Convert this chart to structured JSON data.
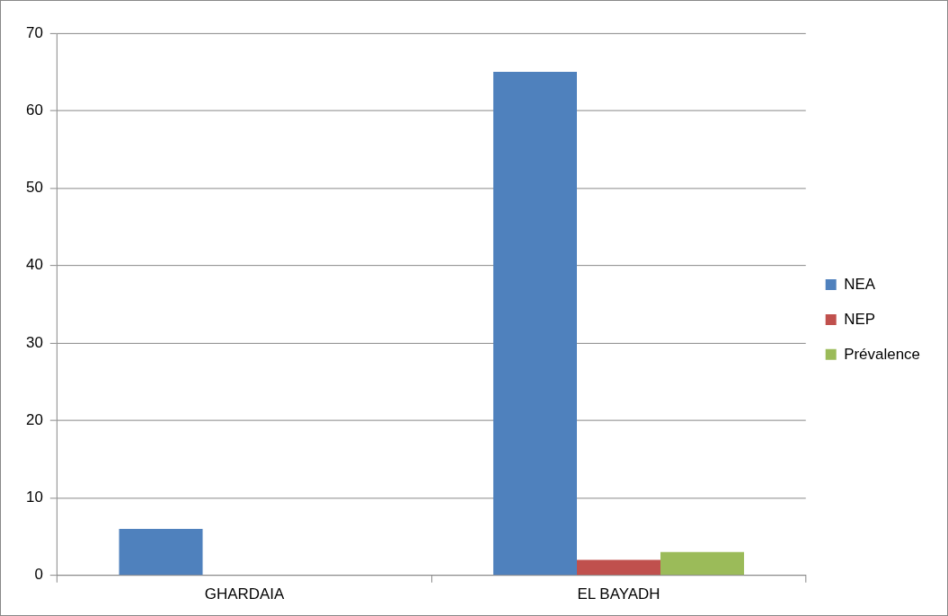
{
  "chart_data": {
    "type": "bar",
    "categories": [
      "GHARDAIA",
      "EL BAYADH"
    ],
    "series": [
      {
        "name": "NEA",
        "color": "#4f81bd",
        "values": [
          6,
          65
        ]
      },
      {
        "name": "NEP",
        "color": "#c0504d",
        "values": [
          0,
          2
        ]
      },
      {
        "name": "Prévalence",
        "color": "#9bbb59",
        "values": [
          0,
          3
        ]
      }
    ],
    "ylim": [
      0,
      70
    ],
    "yticks": [
      0,
      10,
      20,
      30,
      40,
      50,
      60,
      70
    ],
    "grid": "y",
    "legend": "right"
  }
}
